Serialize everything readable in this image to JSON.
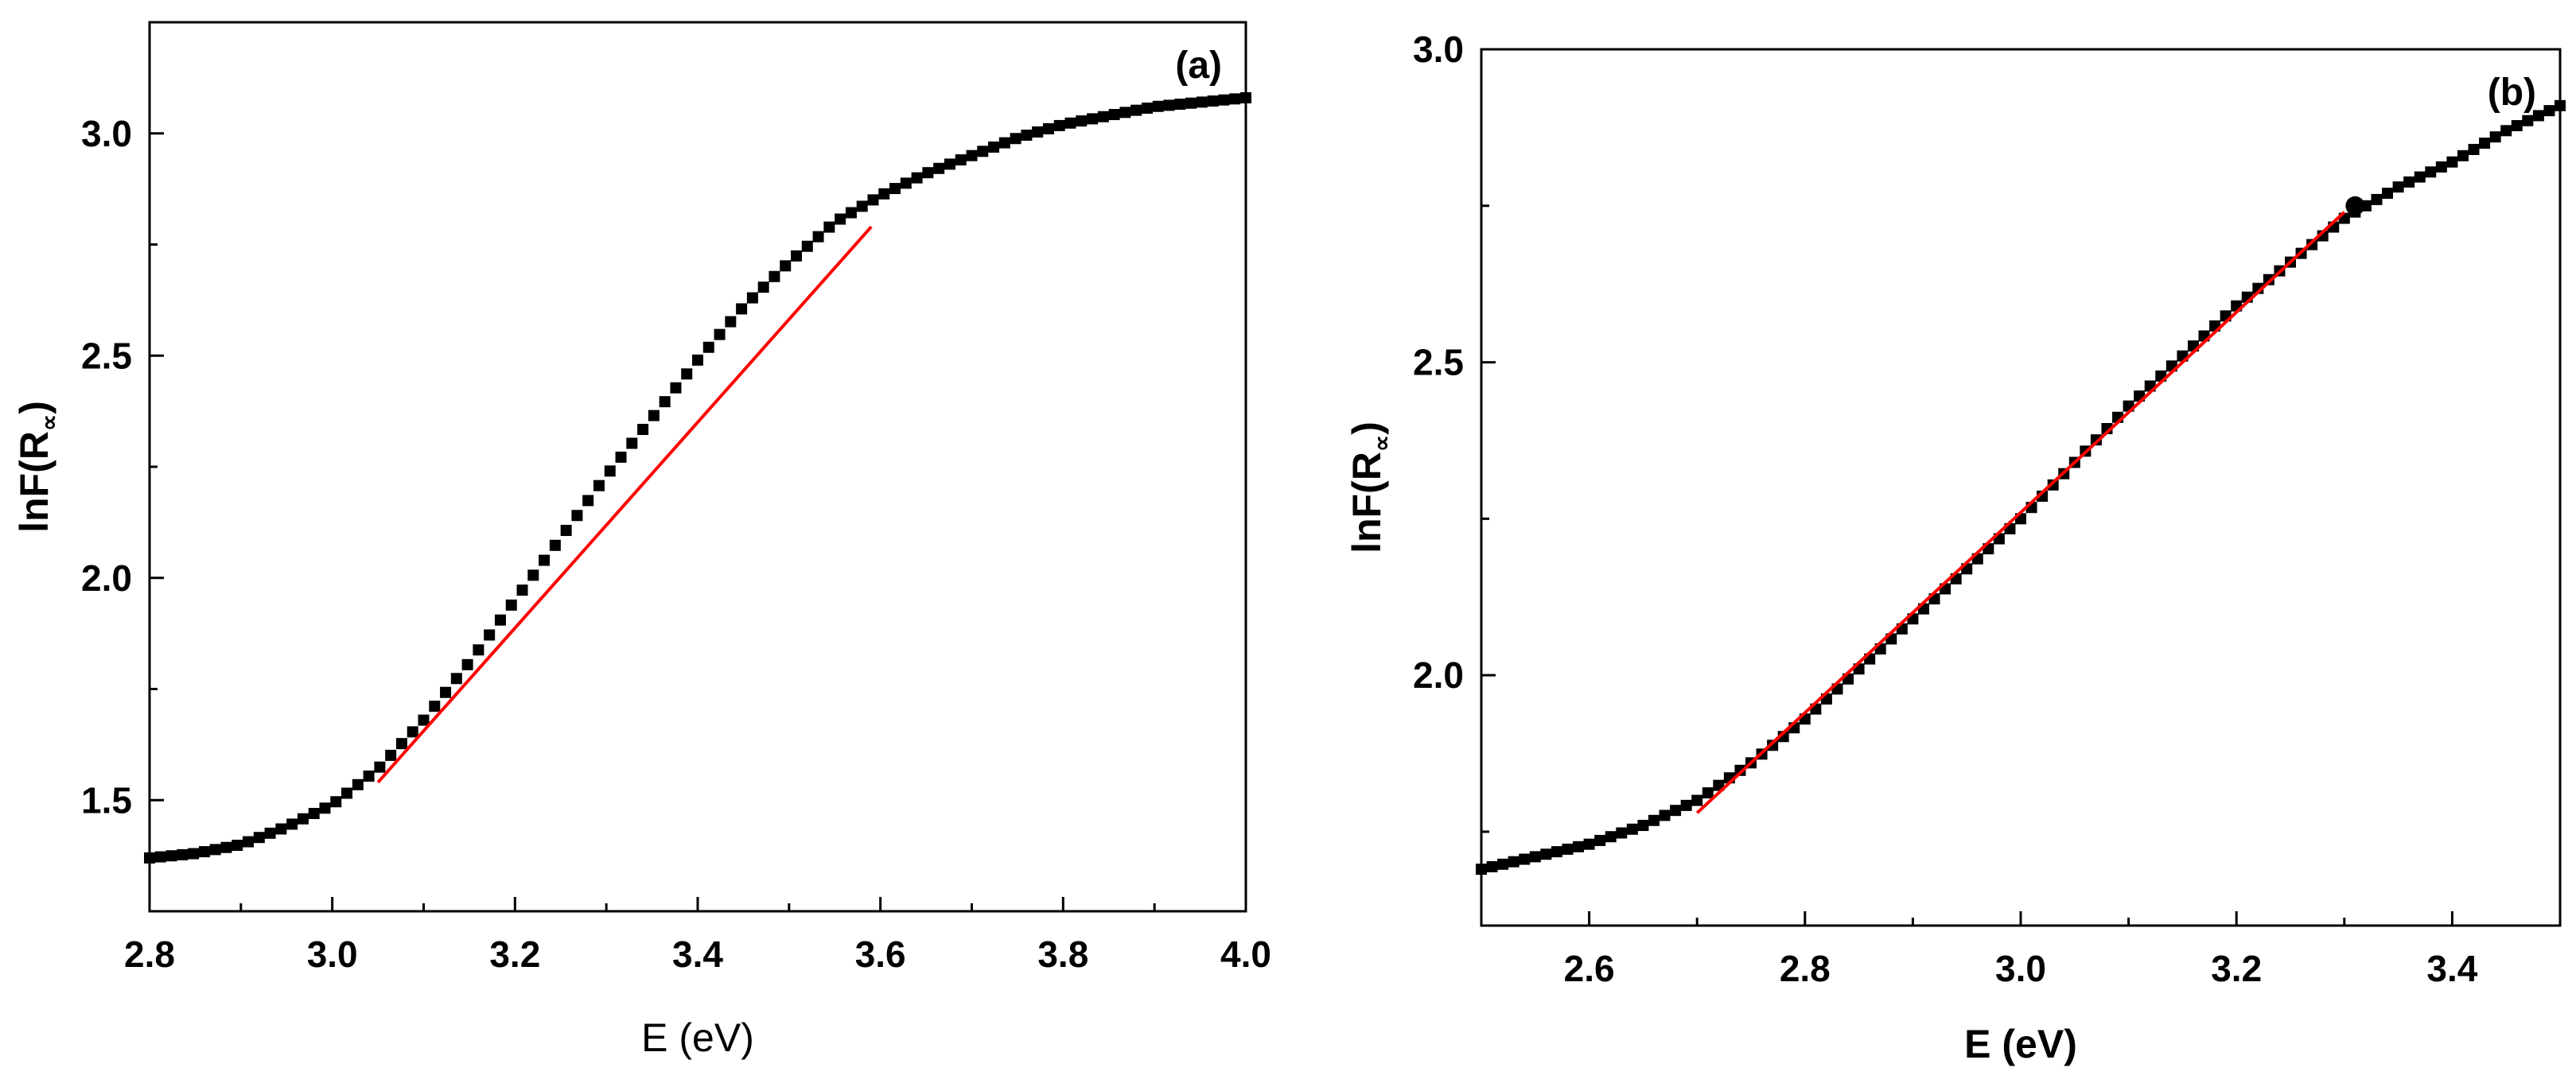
{
  "chart_data": [
    {
      "type": "scatter",
      "panel_label": "(a)",
      "xlabel": "E (eV)",
      "ylabel_main": "lnF(R",
      "ylabel_sub": "∝",
      "ylabel_close": ")",
      "xlim": [
        2.8,
        4.0
      ],
      "ylim": [
        1.25,
        3.25
      ],
      "xticks": [
        2.8,
        3.0,
        3.2,
        3.4,
        3.6,
        3.8,
        4.0
      ],
      "xtick_labels": [
        "2.8",
        "3.0",
        "3.2",
        "3.4",
        "3.6",
        "3.8",
        "4.0"
      ],
      "yticks": [
        1.5,
        2.0,
        2.5,
        3.0
      ],
      "ytick_labels": [
        "1.5",
        "2.0",
        "2.5",
        "3.0"
      ],
      "series": [
        {
          "color": "#000000",
          "marker": "square",
          "x": [
            2.8,
            2.85,
            2.9,
            2.95,
            3.0,
            3.05,
            3.1,
            3.15,
            3.2,
            3.25,
            3.3,
            3.35,
            3.4,
            3.45,
            3.5,
            3.55,
            3.6,
            3.65,
            3.7,
            3.75,
            3.8,
            3.85,
            3.9,
            3.95,
            4.0
          ],
          "y": [
            1.37,
            1.38,
            1.4,
            1.44,
            1.49,
            1.57,
            1.68,
            1.81,
            1.95,
            2.09,
            2.23,
            2.36,
            2.49,
            2.61,
            2.71,
            2.8,
            2.86,
            2.91,
            2.95,
            2.99,
            3.02,
            3.04,
            3.06,
            3.07,
            3.08
          ]
        }
      ],
      "fit_line": {
        "color": "#ff0000",
        "x": [
          3.05,
          3.59
        ],
        "y": [
          1.54,
          2.79
        ]
      }
    },
    {
      "type": "scatter",
      "panel_label": "(b)",
      "xlabel": "E (eV)",
      "ylabel_main": "lnF(R",
      "ylabel_sub": "∝",
      "ylabel_close": ")",
      "xlim": [
        2.5,
        3.5
      ],
      "ylim": [
        1.6,
        3.0
      ],
      "xticks": [
        2.6,
        2.8,
        3.0,
        3.2,
        3.4
      ],
      "xtick_labels": [
        "2.6",
        "2.8",
        "3.0",
        "3.2",
        "3.4"
      ],
      "yticks": [
        2.0,
        2.5,
        3.0
      ],
      "ytick_labels": [
        "2.0",
        "2.5",
        "3.0"
      ],
      "series": [
        {
          "color": "#000000",
          "marker": "square",
          "x": [
            2.5,
            2.55,
            2.6,
            2.65,
            2.7,
            2.75,
            2.8,
            2.85,
            2.9,
            2.95,
            3.0,
            3.05,
            3.1,
            3.15,
            3.2,
            3.25,
            3.3,
            3.35,
            3.4,
            3.45,
            3.5
          ],
          "y": [
            1.69,
            1.71,
            1.73,
            1.76,
            1.8,
            1.86,
            1.93,
            2.01,
            2.09,
            2.17,
            2.25,
            2.34,
            2.43,
            2.51,
            2.59,
            2.66,
            2.73,
            2.78,
            2.82,
            2.87,
            2.91
          ]
        }
      ],
      "fit_line": {
        "color": "#ff0000",
        "x": [
          2.7,
          3.3
        ],
        "y": [
          1.78,
          2.74
        ]
      },
      "highlight_point": {
        "x": 3.31,
        "y": 2.75,
        "color": "#000000",
        "marker": "circle"
      }
    }
  ]
}
